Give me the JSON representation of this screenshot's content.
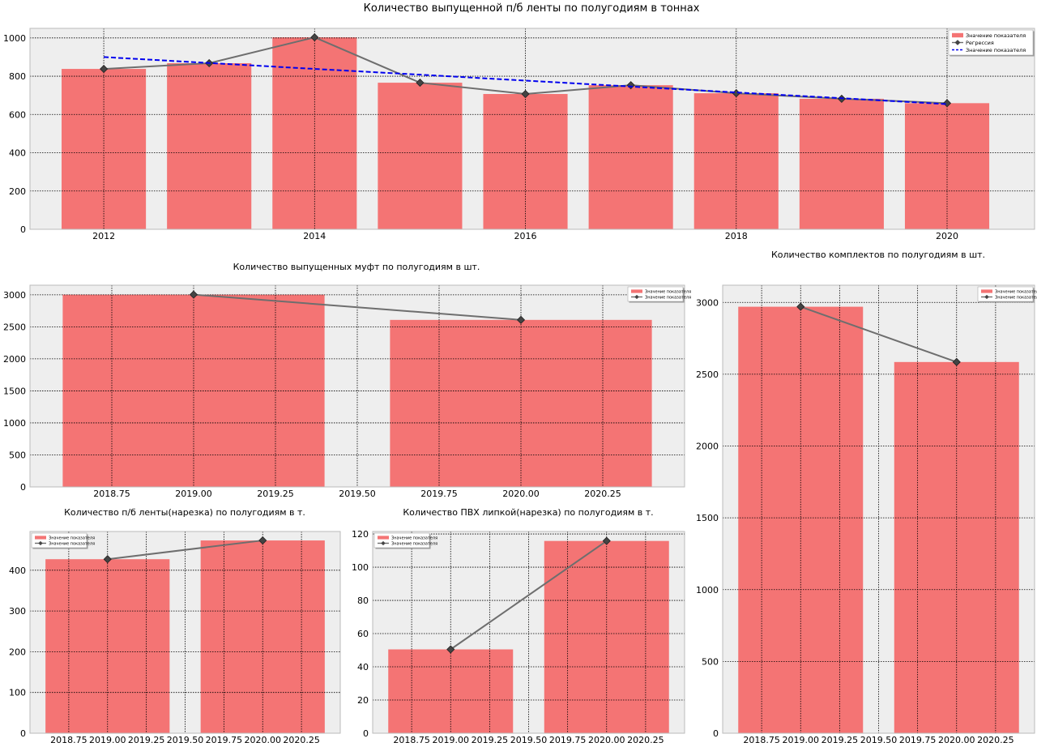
{
  "colors": {
    "bar": "#f47474",
    "line": "#6e6e6e",
    "marker": "#444444",
    "regression": "#0000ee",
    "plot_bg": "#eeeeee",
    "grid": "#000000"
  },
  "chart_data": [
    {
      "type": "bar",
      "title": "Количество выпущенной п/б ленты по полугодиям в тоннах",
      "x": [
        2012,
        2013,
        2014,
        2015,
        2016,
        2017,
        2018,
        2019,
        2020
      ],
      "xlim": [
        2011.3,
        2020.83
      ],
      "ylim": [
        0,
        1050
      ],
      "xticks": [
        2012,
        2014,
        2016,
        2018,
        2020
      ],
      "xtick_labels": [
        "2012",
        "2014",
        "2016",
        "2018",
        "2020"
      ],
      "yticks": [
        0,
        200,
        400,
        600,
        800,
        1000
      ],
      "ytick_labels": [
        "0",
        "200",
        "400",
        "600",
        "800",
        "1000"
      ],
      "bar_width": 0.8,
      "series": [
        {
          "name": "Значение показателя",
          "kind": "bar",
          "values": [
            838,
            868,
            1003,
            766,
            707,
            753,
            711,
            682,
            659
          ]
        },
        {
          "name": "Значение показателя",
          "kind": "line",
          "values": [
            838,
            868,
            1003,
            766,
            707,
            753,
            711,
            682,
            659
          ]
        },
        {
          "name": "Регрессия",
          "kind": "regression",
          "values": [
            900,
            869,
            838,
            808,
            777,
            746,
            715,
            685,
            654
          ]
        }
      ],
      "legend": [
        "Значение показателя",
        "Регрессия",
        "Значение показателя"
      ],
      "legend_position": "top-right",
      "grid": true
    },
    {
      "type": "bar",
      "title": "Количество выпущенных муфт по полугодиям в шт.",
      "x": [
        2019.0,
        2020.0
      ],
      "xlim": [
        2018.5,
        2020.5
      ],
      "ylim": [
        0,
        3150
      ],
      "xticks": [
        2018.75,
        2019.0,
        2019.25,
        2019.5,
        2019.75,
        2020.0,
        2020.25
      ],
      "xtick_labels": [
        "2018.75",
        "2019.00",
        "2019.25",
        "2019.50",
        "2019.75",
        "2020.00",
        "2020.25"
      ],
      "yticks": [
        0,
        500,
        1000,
        1500,
        2000,
        2500,
        3000
      ],
      "ytick_labels": [
        "0",
        "500",
        "1000",
        "1500",
        "2000",
        "2500",
        "3000"
      ],
      "bar_width": 0.8,
      "series": [
        {
          "name": "Значение показателя",
          "kind": "bar",
          "values": [
            3003,
            2608
          ]
        },
        {
          "name": "Значение показателя",
          "kind": "line",
          "values": [
            3003,
            2608
          ]
        }
      ],
      "legend": [
        "Значение показателя",
        "Значение показателя"
      ],
      "legend_position": "top-right",
      "grid": true
    },
    {
      "type": "bar",
      "title": "Количество комплектов по полугодиям в шт.",
      "x": [
        2019.0,
        2020.0
      ],
      "xlim": [
        2018.5,
        2020.5
      ],
      "ylim": [
        0,
        3120
      ],
      "xticks": [
        2018.75,
        2019.0,
        2019.25,
        2019.5,
        2019.75,
        2020.0,
        2020.25
      ],
      "xtick_labels": [
        "2018.75",
        "2019.00",
        "2019.25",
        "2019.50",
        "2019.75",
        "2020.00",
        "2020.25"
      ],
      "yticks": [
        0,
        500,
        1000,
        1500,
        2000,
        2500,
        3000
      ],
      "ytick_labels": [
        "0",
        "500",
        "1000",
        "1500",
        "2000",
        "2500",
        "3000"
      ],
      "bar_width": 0.8,
      "series": [
        {
          "name": "Значение показателя",
          "kind": "bar",
          "values": [
            2970,
            2585
          ]
        },
        {
          "name": "Значение показателя",
          "kind": "line",
          "values": [
            2970,
            2585
          ]
        }
      ],
      "legend": [
        "Значение показателя",
        "Значение показателя"
      ],
      "legend_position": "top-right",
      "grid": true
    },
    {
      "type": "bar",
      "title": "Количество п/б ленты(нарезка) по полугодиям в т.",
      "x": [
        2019.0,
        2020.0
      ],
      "xlim": [
        2018.5,
        2020.5
      ],
      "ylim": [
        0,
        495
      ],
      "xticks": [
        2018.75,
        2019.0,
        2019.25,
        2019.5,
        2019.75,
        2020.0,
        2020.25
      ],
      "xtick_labels": [
        "2018.75",
        "2019.00",
        "2019.25",
        "2019.50",
        "2019.75",
        "2020.00",
        "2020.25"
      ],
      "yticks": [
        0,
        100,
        200,
        300,
        400
      ],
      "ytick_labels": [
        "0",
        "100",
        "200",
        "300",
        "400"
      ],
      "bar_width": 0.8,
      "series": [
        {
          "name": "Значение показателя",
          "kind": "bar",
          "values": [
            427,
            473
          ]
        },
        {
          "name": "Значение показателя",
          "kind": "line",
          "values": [
            427,
            473
          ]
        }
      ],
      "legend": [
        "Значение показателя",
        "Значение показателя"
      ],
      "legend_position": "top-left",
      "grid": true
    },
    {
      "type": "bar",
      "title": "Количество ПВХ липкой(нарезка) по полугодиям в т.",
      "x": [
        2019.0,
        2020.0
      ],
      "xlim": [
        2018.5,
        2020.5
      ],
      "ylim": [
        0,
        121.5
      ],
      "xticks": [
        2018.75,
        2019.0,
        2019.25,
        2019.5,
        2019.75,
        2020.0,
        2020.25
      ],
      "xtick_labels": [
        "2018.75",
        "2019.00",
        "2019.25",
        "2019.50",
        "2019.75",
        "2020.00",
        "2020.25"
      ],
      "yticks": [
        0,
        20,
        40,
        60,
        80,
        100,
        120
      ],
      "ytick_labels": [
        "0",
        "20",
        "40",
        "60",
        "80",
        "100",
        "120"
      ],
      "bar_width": 0.8,
      "series": [
        {
          "name": "Значение показателя",
          "kind": "bar",
          "values": [
            50.5,
            115.8
          ]
        },
        {
          "name": "Значение показателя",
          "kind": "line",
          "values": [
            50.5,
            115.8
          ]
        }
      ],
      "legend": [
        "Значение показателя",
        "Значение показателя"
      ],
      "legend_position": "top-left",
      "grid": true
    }
  ]
}
